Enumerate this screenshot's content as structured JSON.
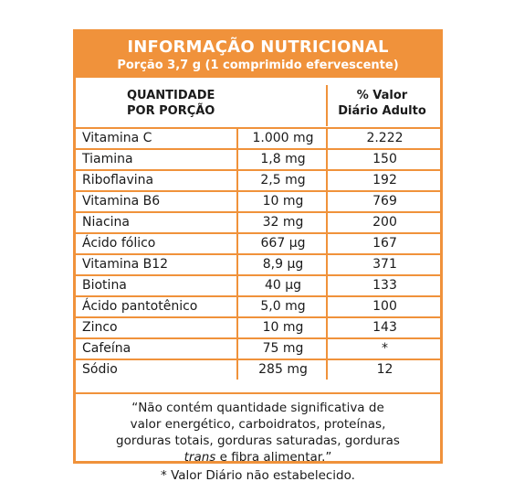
{
  "header": {
    "title": "INFORMAÇÃO NUTRICIONAL",
    "subtitle": "Porção 3,7 g (1 comprimido efervescente)"
  },
  "columns": {
    "quantity_line1": "QUANTIDADE",
    "quantity_line2": "POR PORÇÃO",
    "dv_line1": "% Valor",
    "dv_line2": "Diário Adulto"
  },
  "rows": [
    {
      "name": "Vitamina C",
      "amount": "1.000 mg",
      "dv": "2.222"
    },
    {
      "name": "Tiamina",
      "amount": "1,8 mg",
      "dv": "150"
    },
    {
      "name": "Riboflavina",
      "amount": "2,5 mg",
      "dv": "192"
    },
    {
      "name": "Vitamina B6",
      "amount": "10 mg",
      "dv": "769"
    },
    {
      "name": "Niacina",
      "amount": "32 mg",
      "dv": "200"
    },
    {
      "name": "Ácido fólico",
      "amount": "667 µg",
      "dv": "167"
    },
    {
      "name": "Vitamina B12",
      "amount": "8,9 µg",
      "dv": "371"
    },
    {
      "name": "Biotina",
      "amount": "40 µg",
      "dv": "133"
    },
    {
      "name": "Ácido pantotênico",
      "amount": "5,0 mg",
      "dv": "100"
    },
    {
      "name": "Zinco",
      "amount": "10 mg",
      "dv": "143"
    },
    {
      "name": "Cafeína",
      "amount": "75 mg",
      "dv": "*"
    },
    {
      "name": "Sódio",
      "amount": "285 mg",
      "dv": "12"
    }
  ],
  "note": {
    "line1": "“Não contém quantidade significativa de",
    "line2": "valor energético, carboidratos, proteínas,",
    "line3": "gorduras totais, gorduras saturadas, gorduras",
    "line4_italic": "trans",
    "line4_rest": " e fibra alimentar.”"
  },
  "footnote": "* Valor Diário não estabelecido.",
  "colors": {
    "accent": "#f0923b",
    "text": "#1a1a1a"
  }
}
